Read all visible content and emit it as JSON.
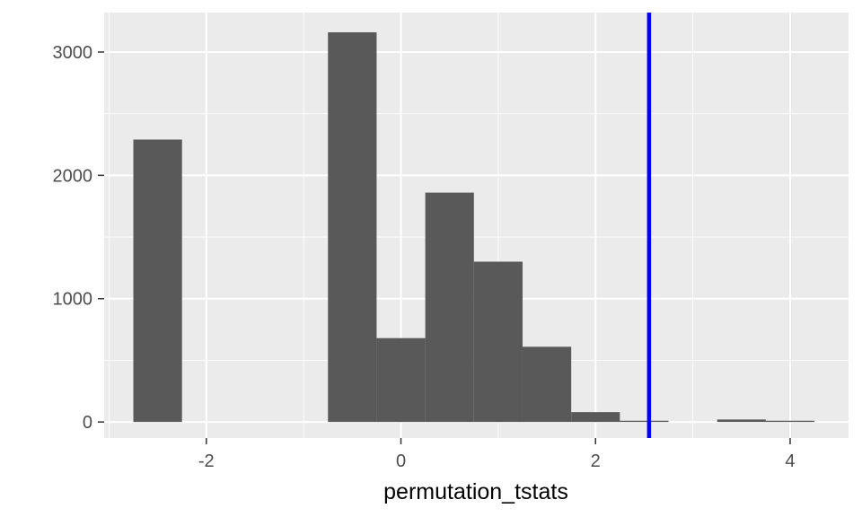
{
  "chart_data": {
    "type": "bar",
    "subtype": "histogram",
    "xlabel": "permutation_tstats",
    "ylabel": "",
    "bin_width": 0.5,
    "bin_centers": [
      -2.5,
      -2.0,
      -1.5,
      -1.0,
      -0.5,
      0.0,
      0.5,
      1.0,
      1.5,
      2.0,
      2.5,
      3.0,
      3.5,
      4.0
    ],
    "values": [
      2290,
      0,
      0,
      0,
      3160,
      680,
      1860,
      1300,
      610,
      80,
      10,
      0,
      20,
      10
    ],
    "xlim": [
      -3.05,
      4.6
    ],
    "ylim": [
      -130,
      3320
    ],
    "xticks": [
      -2,
      0,
      2,
      4
    ],
    "xtick_labels": [
      "-2",
      "0",
      "2",
      "4"
    ],
    "yticks": [
      0,
      1000,
      2000,
      3000
    ],
    "ytick_labels": [
      "0",
      "1000",
      "2000",
      "3000"
    ],
    "vline": {
      "x": 2.55,
      "color": "#0000ff"
    },
    "bar_color": "#595959",
    "panel_background": "#ebebeb",
    "grid": true
  }
}
